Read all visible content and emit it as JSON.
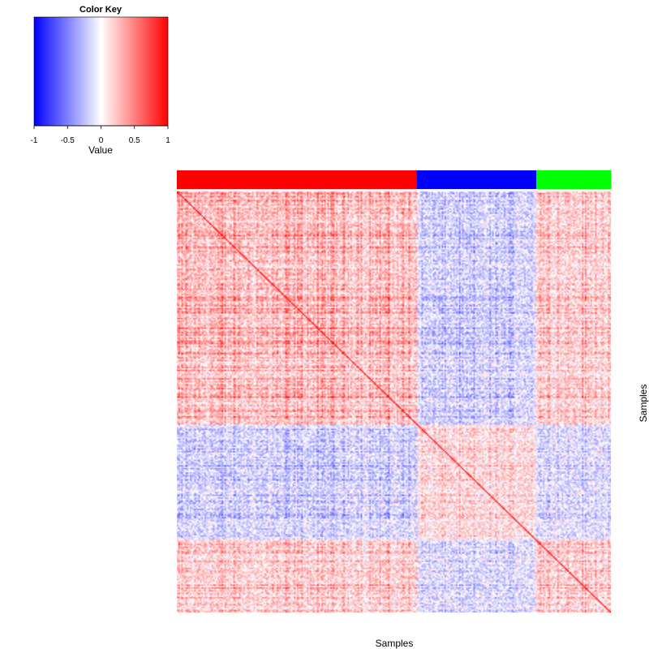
{
  "chart_data": {
    "type": "heatmap",
    "title": "",
    "xlabel": "Samples",
    "ylabel": "Samples",
    "color_key": {
      "title": "Color Key",
      "label": "Value",
      "range": [
        -1,
        1
      ],
      "ticks": [
        "-1",
        "-0.5",
        "0",
        "0.5",
        "1"
      ],
      "colors": [
        "#0000ff",
        "#ffffff",
        "#ff0000"
      ]
    },
    "sample_groups": [
      {
        "color": "#ff0000",
        "fraction": 0.553
      },
      {
        "color": "#0000ff",
        "fraction": 0.275
      },
      {
        "color": "#00ff00",
        "fraction": 0.172
      }
    ],
    "block_structure": [
      [
        0.55,
        -0.35,
        0.45
      ],
      [
        -0.35,
        0.3,
        -0.3
      ],
      [
        0.45,
        -0.3,
        0.5
      ]
    ],
    "diagonal_value": 1
  }
}
